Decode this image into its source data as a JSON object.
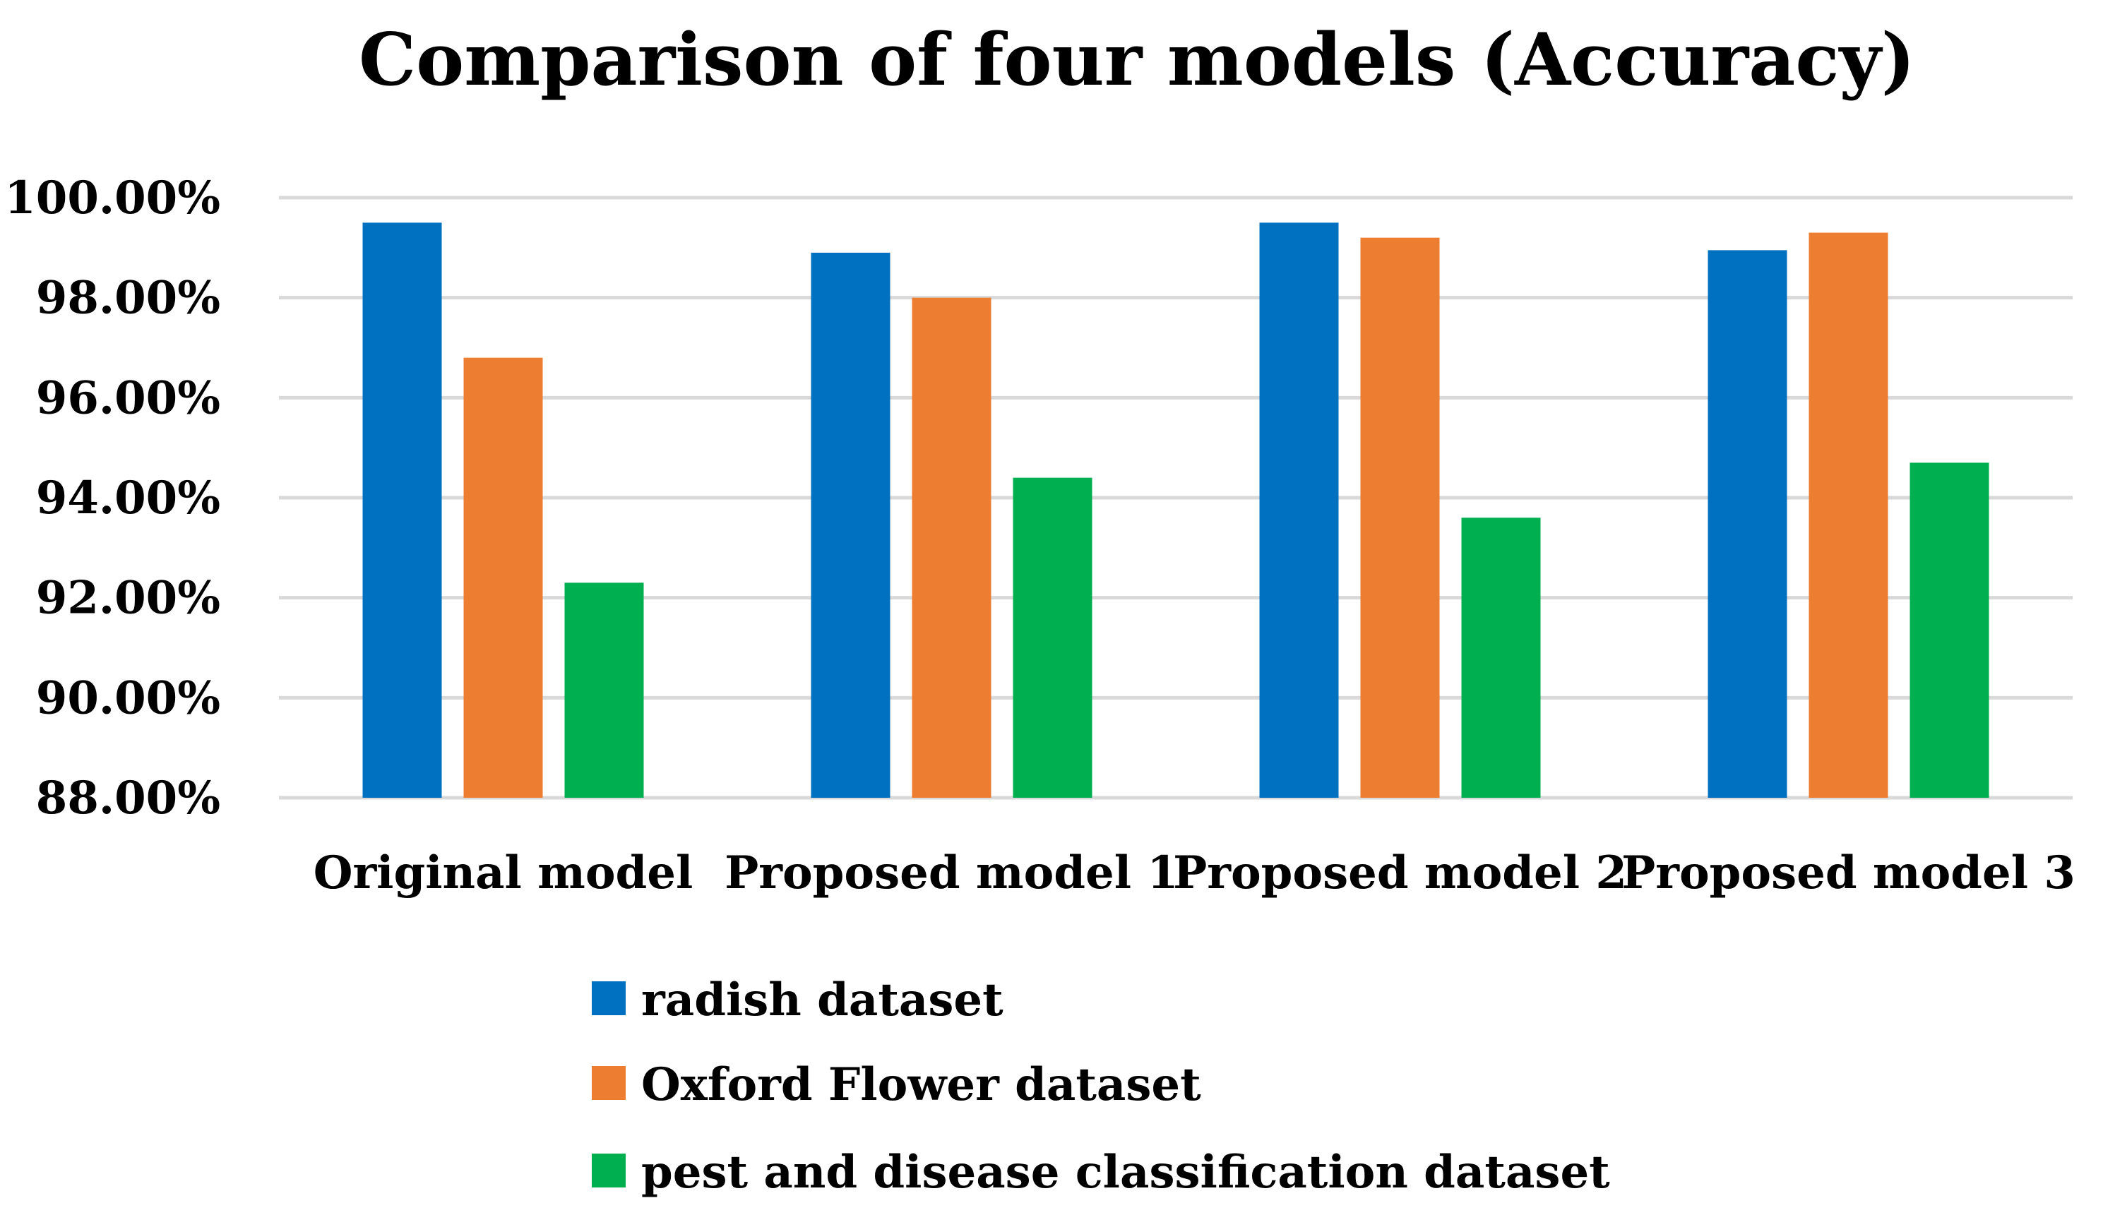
{
  "chart_data": {
    "type": "bar",
    "title": "Comparison of four models (Accuracy)",
    "xlabel": "",
    "ylabel": "",
    "ylim": [
      88,
      100
    ],
    "y_tick_step": 2,
    "y_ticks": [
      "88.00%",
      "90.00%",
      "92.00%",
      "94.00%",
      "96.00%",
      "98.00%",
      "100.00%"
    ],
    "categories": [
      "Original model",
      "Proposed model 1",
      "Proposed model 2",
      "Proposed model 3"
    ],
    "series": [
      {
        "name": "radish dataset",
        "color": "#0070c0",
        "values": [
          99.5,
          98.9,
          99.5,
          98.95
        ]
      },
      {
        "name": "Oxford Flower dataset",
        "color": "#ed7d31",
        "values": [
          96.8,
          98.0,
          99.2,
          99.3
        ]
      },
      {
        "name": "pest and disease classification dataset",
        "color": "#00b050",
        "values": [
          92.3,
          94.4,
          93.6,
          94.7
        ]
      }
    ],
    "grid": true,
    "legend_position": "bottom"
  }
}
